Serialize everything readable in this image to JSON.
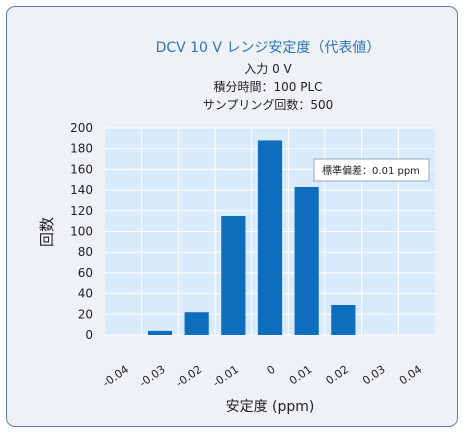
{
  "chart_data": {
    "type": "bar",
    "title": "DCV 10 V レンジ安定度（代表値）",
    "subtitle_lines": [
      "入力 0 V",
      "積分時間：100 PLC",
      "サンプリング回数：500"
    ],
    "annotation": "標準偏差：0.01 ppm",
    "xlabel": "安定度 (ppm)",
    "ylabel": "回数",
    "x_ticks": [
      "-0.04",
      "-0.03",
      "-0.02",
      "-0.01",
      "0",
      "0.01",
      "0.02",
      "0.03",
      "0.04"
    ],
    "y_ticks": [
      "0",
      "20",
      "40",
      "60",
      "80",
      "100",
      "120",
      "140",
      "160",
      "180",
      "200"
    ],
    "ylim": [
      0,
      200
    ],
    "categories": [
      "-0.04",
      "-0.03",
      "-0.02",
      "-0.01",
      "0",
      "0.01",
      "0.02",
      "0.03",
      "0.04"
    ],
    "values": [
      0,
      4,
      22,
      115,
      188,
      143,
      29,
      0,
      0
    ],
    "grid": true,
    "colors": {
      "bar": "#0f6dbd",
      "plot_bg": "#d9ebfa",
      "grid": "#ffffff",
      "title": "#2e74b5",
      "card_bg": "#eef2f7",
      "card_border": "#5a7fa8"
    }
  }
}
